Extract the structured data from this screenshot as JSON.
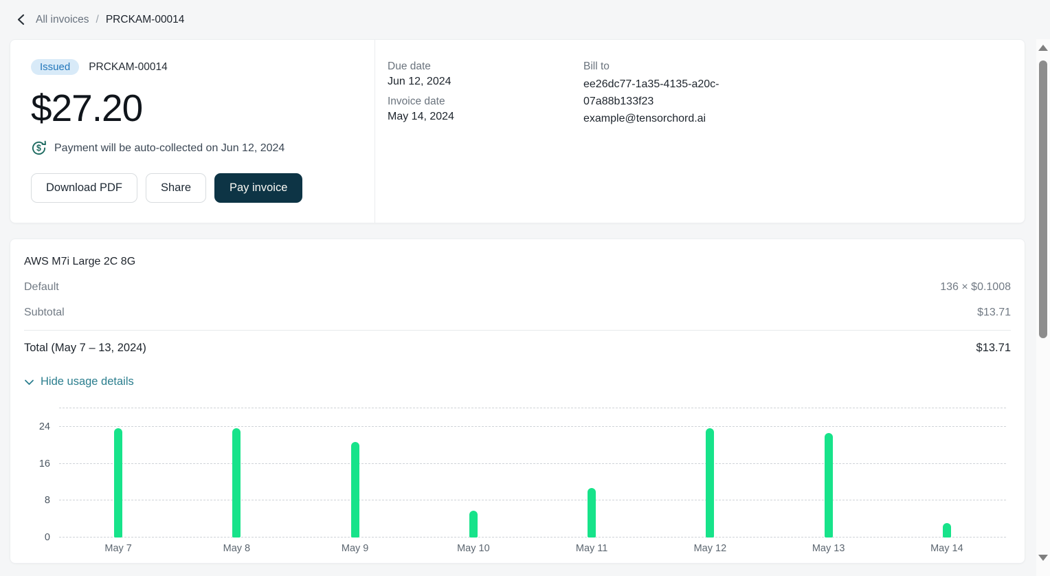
{
  "breadcrumb": {
    "parent": "All invoices",
    "separator": "/",
    "current": "PRCKAM-00014"
  },
  "invoice": {
    "status": "Issued",
    "number": "PRCKAM-00014",
    "amount": "$27.20",
    "auto_collect_note": "Payment will be auto-collected on Jun 12, 2024",
    "buttons": {
      "download": "Download PDF",
      "share": "Share",
      "pay": "Pay invoice"
    },
    "due_date_label": "Due date",
    "due_date": "Jun 12, 2024",
    "invoice_date_label": "Invoice date",
    "invoice_date": "May 14, 2024",
    "bill_to_label": "Bill to",
    "bill_to_id_line1": "ee26dc77-1a35-4135-a20c-",
    "bill_to_id_line2": "07a88b133f23",
    "bill_to_email": "example@tensorchord.ai"
  },
  "line_items": {
    "product": "AWS M7i Large 2C 8G",
    "rows": [
      {
        "label": "Default",
        "value": "136 × $0.1008"
      },
      {
        "label": "Subtotal",
        "value": "$13.71"
      }
    ],
    "total_label": "Total (May 7 – 13, 2024)",
    "total_value": "$13.71",
    "toggle_label": "Hide usage details"
  },
  "chart_data": {
    "type": "bar",
    "categories": [
      "May 7",
      "May 8",
      "May 9",
      "May 10",
      "May 11",
      "May 12",
      "May 13",
      "May 14"
    ],
    "values": [
      23.7,
      23.7,
      20.7,
      5.8,
      10.8,
      23.7,
      22.6,
      3.1
    ],
    "title": "",
    "xlabel": "",
    "ylabel": "",
    "yticks": [
      0,
      8,
      16,
      24
    ],
    "ylim": [
      0,
      28
    ],
    "grid": "dashed-horizontal",
    "legend": "none",
    "bar_color": "#17e38a"
  },
  "icons": {
    "back": "chevron-left",
    "auto_pay": "dollar-refresh-cycle",
    "toggle": "chevron-down",
    "scroll_up": "triangle-up",
    "scroll_down": "triangle-down"
  },
  "colors": {
    "accent_teal": "#2b7e8e",
    "bar_green": "#17e38a",
    "pay_button_bg": "#0d3445",
    "badge_bg": "#d8eaf8",
    "badge_text": "#2277bb",
    "auto_pay_icon": "#1d6a60",
    "page_bg": "#f5f6f7"
  }
}
